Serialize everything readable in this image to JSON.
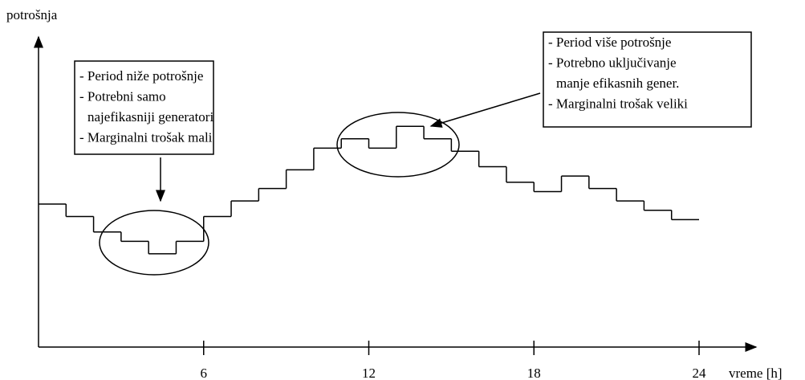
{
  "chart_data": {
    "type": "step",
    "y_label": "potrošnja",
    "x_label": "vreme [h]",
    "x": [
      0,
      1,
      2,
      3,
      4,
      5,
      6,
      7,
      8,
      9,
      10,
      11,
      12,
      13,
      14,
      15,
      16,
      17,
      18,
      19,
      20,
      21,
      22,
      23
    ],
    "values": [
      46,
      42,
      37,
      34,
      30,
      34,
      42,
      47,
      51,
      57,
      64,
      67,
      64,
      71,
      67,
      63,
      58,
      53,
      50,
      55,
      51,
      47,
      44,
      41
    ],
    "color": "#000000",
    "xlim": [
      0,
      24
    ],
    "xticks": [
      6,
      12,
      18,
      24
    ],
    "ylim": [
      0,
      100
    ],
    "annotations": [
      {
        "lines": [
          "- Period niže potrošnje",
          "- Potrebni samo",
          "najefikasniji generatori",
          "- Marginalni trošak mali"
        ]
      },
      {
        "lines": [
          "- Period više potrošnje",
          "- Potrebno uključivanje",
          "manje efikasnih gener.",
          "- Marginalni trošak veliki"
        ]
      }
    ]
  }
}
